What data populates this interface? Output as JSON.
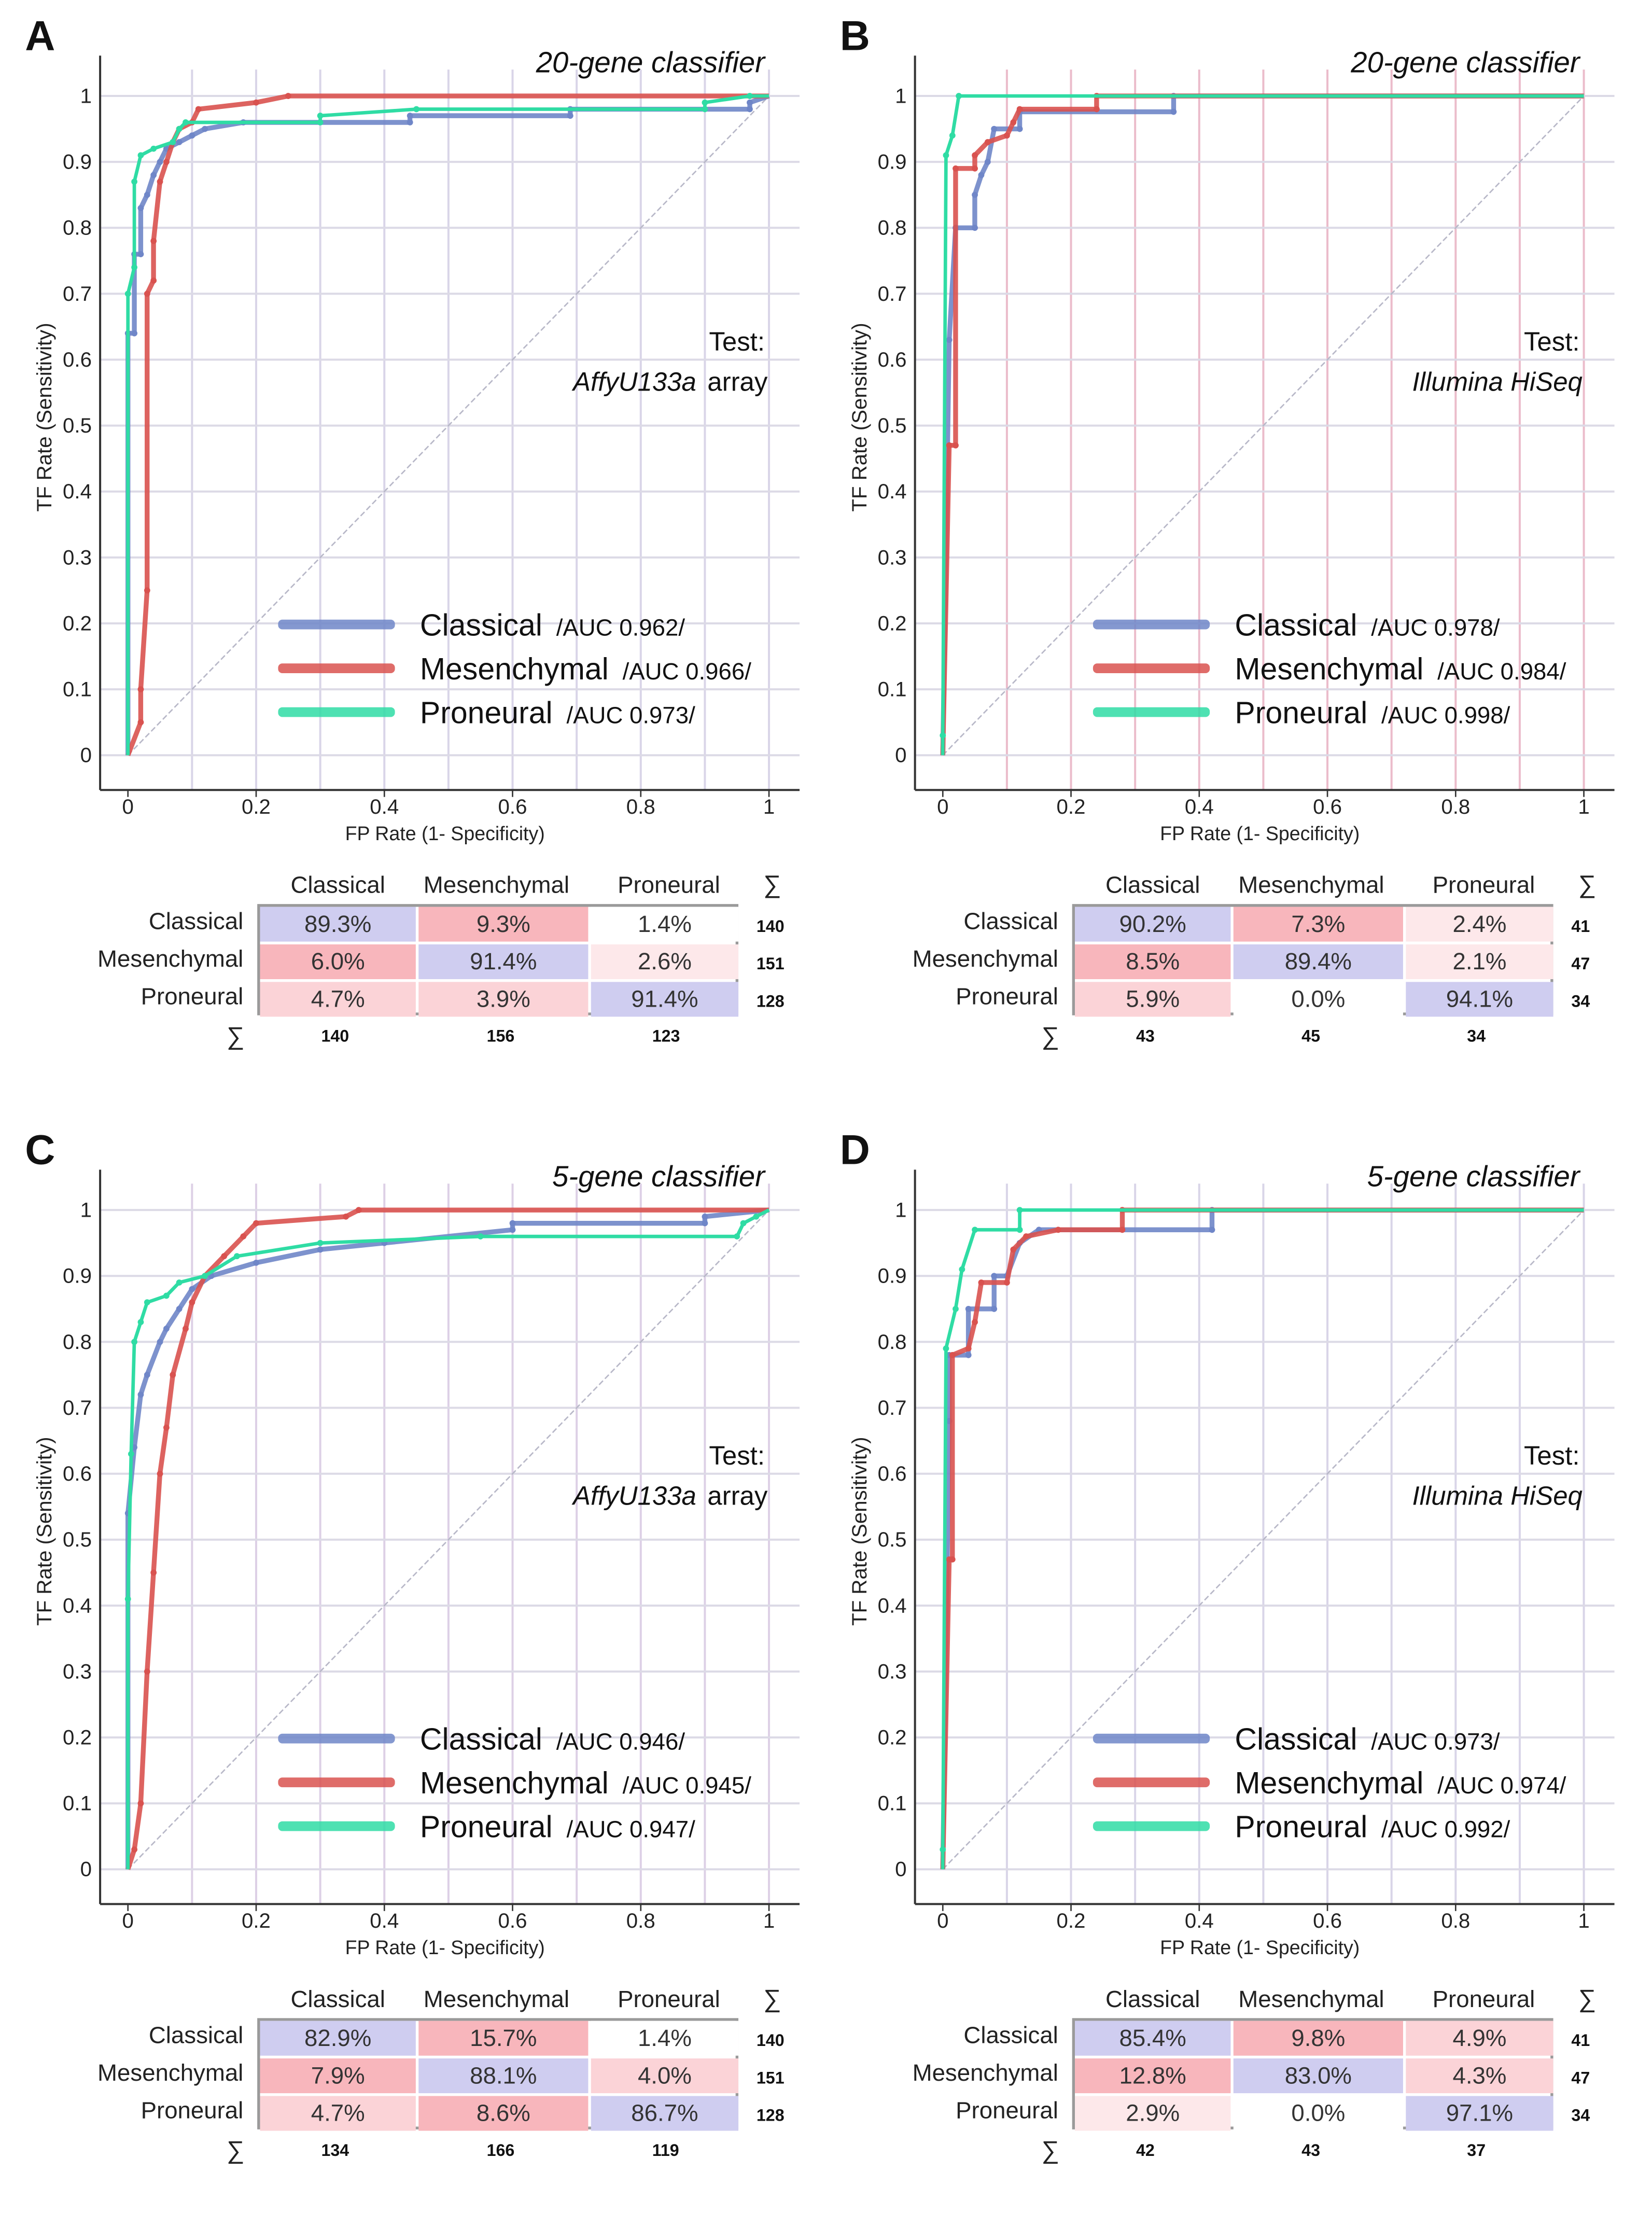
{
  "chart_data": [
    {
      "type": "line",
      "panel_label": "A",
      "title": "20-gene classifier",
      "test_label": "Test:",
      "test_platform": "AffyU133a",
      "test_suffix": "array",
      "xlabel": "FP Rate (1- Specificity)",
      "ylabel": "TF Rate (Sensitivity)",
      "xlim": [
        0,
        1
      ],
      "ylim": [
        0,
        1
      ],
      "x_ticks": [
        "0",
        "0.2",
        "0.4",
        "0.6",
        "0.8",
        "1"
      ],
      "y_ticks": [
        "0",
        "0.1",
        "0.2",
        "0.3",
        "0.4",
        "0.5",
        "0.6",
        "0.7",
        "0.8",
        "0.9",
        "1"
      ],
      "grid": true,
      "grid_color": "#d9d5e8",
      "legend_placement": "bottom-right",
      "series": [
        {
          "name": "Classical",
          "auc": "/AUC 0.962/",
          "color": "#6f86c8",
          "points": [
            [
              0,
              0
            ],
            [
              0,
              0.64
            ],
            [
              0.01,
              0.64
            ],
            [
              0.01,
              0.76
            ],
            [
              0.02,
              0.76
            ],
            [
              0.02,
              0.83
            ],
            [
              0.03,
              0.85
            ],
            [
              0.04,
              0.88
            ],
            [
              0.05,
              0.9
            ],
            [
              0.06,
              0.92
            ],
            [
              0.08,
              0.93
            ],
            [
              0.1,
              0.94
            ],
            [
              0.12,
              0.95
            ],
            [
              0.18,
              0.96
            ],
            [
              0.44,
              0.96
            ],
            [
              0.44,
              0.97
            ],
            [
              0.69,
              0.97
            ],
            [
              0.69,
              0.98
            ],
            [
              0.97,
              0.98
            ],
            [
              0.97,
              0.99
            ],
            [
              1,
              1
            ]
          ]
        },
        {
          "name": "Mesenchymal",
          "auc": "/AUC 0.966/",
          "color": "#d9524f",
          "points": [
            [
              0,
              0
            ],
            [
              0.02,
              0.05
            ],
            [
              0.02,
              0.1
            ],
            [
              0.03,
              0.25
            ],
            [
              0.03,
              0.7
            ],
            [
              0.04,
              0.72
            ],
            [
              0.04,
              0.78
            ],
            [
              0.05,
              0.87
            ],
            [
              0.06,
              0.9
            ],
            [
              0.07,
              0.93
            ],
            [
              0.08,
              0.95
            ],
            [
              0.1,
              0.96
            ],
            [
              0.11,
              0.98
            ],
            [
              0.2,
              0.99
            ],
            [
              0.25,
              1
            ],
            [
              1,
              1
            ]
          ]
        },
        {
          "name": "Proneural",
          "auc": "/AUC 0.973/",
          "color": "#2fdca4",
          "points": [
            [
              0,
              0
            ],
            [
              0,
              0.7
            ],
            [
              0.01,
              0.74
            ],
            [
              0.01,
              0.87
            ],
            [
              0.02,
              0.91
            ],
            [
              0.04,
              0.92
            ],
            [
              0.07,
              0.93
            ],
            [
              0.08,
              0.95
            ],
            [
              0.09,
              0.96
            ],
            [
              0.3,
              0.96
            ],
            [
              0.3,
              0.97
            ],
            [
              0.45,
              0.98
            ],
            [
              0.9,
              0.98
            ],
            [
              0.9,
              0.99
            ],
            [
              0.97,
              1
            ],
            [
              1,
              1
            ]
          ]
        }
      ],
      "table": {
        "columns": [
          "Classical",
          "Mesenchymal",
          "Proneural"
        ],
        "sum_symbol": "∑",
        "rows": [
          {
            "label": "Classical",
            "cells": [
              "89.3%",
              "9.3%",
              "1.4%"
            ],
            "sum": "140"
          },
          {
            "label": "Mesenchymal",
            "cells": [
              "6.0%",
              "91.4%",
              "2.6%"
            ],
            "sum": "151"
          },
          {
            "label": "Proneural",
            "cells": [
              "4.7%",
              "3.9%",
              "91.4%"
            ],
            "sum": "128"
          }
        ],
        "column_sums": [
          "140",
          "156",
          "123"
        ]
      }
    },
    {
      "type": "line",
      "panel_label": "B",
      "title": "20-gene classifier",
      "test_label": "Test:",
      "test_platform": "Illumina HiSeq",
      "test_suffix": "",
      "xlabel": "FP Rate (1- Specificity)",
      "ylabel": "TF Rate (Sensitivity)",
      "xlim": [
        0,
        1
      ],
      "ylim": [
        0,
        1
      ],
      "x_ticks": [
        "0",
        "0.2",
        "0.4",
        "0.6",
        "0.8",
        "1"
      ],
      "y_ticks": [
        "0",
        "0.1",
        "0.2",
        "0.3",
        "0.4",
        "0.5",
        "0.6",
        "0.7",
        "0.8",
        "0.9",
        "1"
      ],
      "grid": true,
      "grid_color": "#ebbccb",
      "legend_placement": "bottom-right",
      "series": [
        {
          "name": "Classical",
          "auc": "/AUC 0.978/",
          "color": "#6f86c8",
          "points": [
            [
              0,
              0
            ],
            [
              0.01,
              0.63
            ],
            [
              0.02,
              0.8
            ],
            [
              0.05,
              0.8
            ],
            [
              0.05,
              0.85
            ],
            [
              0.06,
              0.88
            ],
            [
              0.07,
              0.9
            ],
            [
              0.08,
              0.95
            ],
            [
              0.12,
              0.95
            ],
            [
              0.12,
              0.976
            ],
            [
              0.36,
              0.976
            ],
            [
              0.36,
              1
            ],
            [
              1,
              1
            ]
          ]
        },
        {
          "name": "Mesenchymal",
          "auc": "/AUC 0.984/",
          "color": "#d9524f",
          "points": [
            [
              0,
              0
            ],
            [
              0.01,
              0.47
            ],
            [
              0.02,
              0.47
            ],
            [
              0.02,
              0.89
            ],
            [
              0.05,
              0.89
            ],
            [
              0.05,
              0.91
            ],
            [
              0.07,
              0.93
            ],
            [
              0.1,
              0.94
            ],
            [
              0.11,
              0.96
            ],
            [
              0.12,
              0.98
            ],
            [
              0.24,
              0.98
            ],
            [
              0.24,
              1
            ],
            [
              1,
              1
            ]
          ]
        },
        {
          "name": "Proneural",
          "auc": "/AUC 0.998/",
          "color": "#2fdca4",
          "points": [
            [
              0,
              0
            ],
            [
              0,
              0.03
            ],
            [
              0.005,
              0.91
            ],
            [
              0.015,
              0.94
            ],
            [
              0.025,
              1
            ],
            [
              1,
              1
            ]
          ]
        }
      ],
      "table": {
        "columns": [
          "Classical",
          "Mesenchymal",
          "Proneural"
        ],
        "sum_symbol": "∑",
        "rows": [
          {
            "label": "Classical",
            "cells": [
              "90.2%",
              "7.3%",
              "2.4%"
            ],
            "sum": "41"
          },
          {
            "label": "Mesenchymal",
            "cells": [
              "8.5%",
              "89.4%",
              "2.1%"
            ],
            "sum": "47"
          },
          {
            "label": "Proneural",
            "cells": [
              "5.9%",
              "0.0%",
              "94.1%"
            ],
            "sum": "34"
          }
        ],
        "column_sums": [
          "43",
          "45",
          "34"
        ]
      }
    },
    {
      "type": "line",
      "panel_label": "C",
      "title": "5-gene classifier",
      "test_label": "Test:",
      "test_platform": "AffyU133a",
      "test_suffix": "array",
      "xlabel": "FP Rate (1- Specificity)",
      "ylabel": "TF Rate (Sensitivity)",
      "xlim": [
        0,
        1
      ],
      "ylim": [
        0,
        1
      ],
      "x_ticks": [
        "0",
        "0.2",
        "0.4",
        "0.6",
        "0.8",
        "1"
      ],
      "y_ticks": [
        "0",
        "0.1",
        "0.2",
        "0.3",
        "0.4",
        "0.5",
        "0.6",
        "0.7",
        "0.8",
        "0.9",
        "1"
      ],
      "grid": true,
      "grid_color": "#ddd0e6",
      "legend_placement": "bottom-right",
      "series": [
        {
          "name": "Classical",
          "auc": "/AUC 0.946/",
          "color": "#6f86c8",
          "points": [
            [
              0,
              0
            ],
            [
              0,
              0.54
            ],
            [
              0.01,
              0.64
            ],
            [
              0.02,
              0.72
            ],
            [
              0.03,
              0.75
            ],
            [
              0.05,
              0.8
            ],
            [
              0.06,
              0.82
            ],
            [
              0.08,
              0.85
            ],
            [
              0.1,
              0.88
            ],
            [
              0.13,
              0.9
            ],
            [
              0.2,
              0.92
            ],
            [
              0.3,
              0.94
            ],
            [
              0.4,
              0.95
            ],
            [
              0.6,
              0.97
            ],
            [
              0.6,
              0.98
            ],
            [
              0.9,
              0.98
            ],
            [
              0.9,
              0.99
            ],
            [
              1,
              1
            ]
          ]
        },
        {
          "name": "Mesenchymal",
          "auc": "/AUC 0.945/",
          "color": "#d9524f",
          "points": [
            [
              0,
              0
            ],
            [
              0.01,
              0.03
            ],
            [
              0.02,
              0.1
            ],
            [
              0.03,
              0.3
            ],
            [
              0.04,
              0.45
            ],
            [
              0.05,
              0.6
            ],
            [
              0.06,
              0.67
            ],
            [
              0.07,
              0.75
            ],
            [
              0.09,
              0.82
            ],
            [
              0.1,
              0.86
            ],
            [
              0.12,
              0.9
            ],
            [
              0.15,
              0.93
            ],
            [
              0.18,
              0.96
            ],
            [
              0.2,
              0.98
            ],
            [
              0.34,
              0.99
            ],
            [
              0.36,
              1
            ],
            [
              1,
              1
            ]
          ]
        },
        {
          "name": "Proneural",
          "auc": "/AUC 0.947/",
          "color": "#2fdca4",
          "points": [
            [
              0,
              0
            ],
            [
              0,
              0.41
            ],
            [
              0.005,
              0.63
            ],
            [
              0.01,
              0.8
            ],
            [
              0.02,
              0.83
            ],
            [
              0.03,
              0.86
            ],
            [
              0.06,
              0.87
            ],
            [
              0.08,
              0.89
            ],
            [
              0.12,
              0.9
            ],
            [
              0.17,
              0.93
            ],
            [
              0.3,
              0.95
            ],
            [
              0.55,
              0.96
            ],
            [
              0.95,
              0.96
            ],
            [
              0.96,
              0.98
            ],
            [
              0.98,
              0.99
            ],
            [
              1,
              1
            ]
          ]
        }
      ],
      "table": {
        "columns": [
          "Classical",
          "Mesenchymal",
          "Proneural"
        ],
        "sum_symbol": "∑",
        "rows": [
          {
            "label": "Classical",
            "cells": [
              "82.9%",
              "15.7%",
              "1.4%"
            ],
            "sum": "140"
          },
          {
            "label": "Mesenchymal",
            "cells": [
              "7.9%",
              "88.1%",
              "4.0%"
            ],
            "sum": "151"
          },
          {
            "label": "Proneural",
            "cells": [
              "4.7%",
              "8.6%",
              "86.7%"
            ],
            "sum": "128"
          }
        ],
        "column_sums": [
          "134",
          "166",
          "119"
        ]
      }
    },
    {
      "type": "line",
      "panel_label": "D",
      "title": "5-gene classifier",
      "test_label": "Test:",
      "test_platform": "Illumina HiSeq",
      "test_suffix": "",
      "xlabel": "FP Rate (1- Specificity)",
      "ylabel": "TF Rate (Sensitivity)",
      "xlim": [
        0,
        1
      ],
      "ylim": [
        0,
        1
      ],
      "x_ticks": [
        "0",
        "0.2",
        "0.4",
        "0.6",
        "0.8",
        "1"
      ],
      "y_ticks": [
        "0",
        "0.1",
        "0.2",
        "0.3",
        "0.4",
        "0.5",
        "0.6",
        "0.7",
        "0.8",
        "0.9",
        "1"
      ],
      "grid": true,
      "grid_color": "#d9d5e8",
      "legend_placement": "bottom-right",
      "series": [
        {
          "name": "Classical",
          "auc": "/AUC 0.973/",
          "color": "#6f86c8",
          "points": [
            [
              0,
              0
            ],
            [
              0.01,
              0.68
            ],
            [
              0.01,
              0.78
            ],
            [
              0.04,
              0.78
            ],
            [
              0.04,
              0.85
            ],
            [
              0.08,
              0.85
            ],
            [
              0.08,
              0.9
            ],
            [
              0.1,
              0.9
            ],
            [
              0.12,
              0.95
            ],
            [
              0.15,
              0.97
            ],
            [
              0.42,
              0.97
            ],
            [
              0.42,
              1
            ],
            [
              1,
              1
            ]
          ]
        },
        {
          "name": "Mesenchymal",
          "auc": "/AUC 0.974/",
          "color": "#d9524f",
          "points": [
            [
              0,
              0
            ],
            [
              0.01,
              0.47
            ],
            [
              0.015,
              0.47
            ],
            [
              0.015,
              0.78
            ],
            [
              0.04,
              0.79
            ],
            [
              0.05,
              0.83
            ],
            [
              0.06,
              0.89
            ],
            [
              0.1,
              0.89
            ],
            [
              0.11,
              0.94
            ],
            [
              0.13,
              0.96
            ],
            [
              0.18,
              0.97
            ],
            [
              0.28,
              0.97
            ],
            [
              0.28,
              1
            ],
            [
              1,
              1
            ]
          ]
        },
        {
          "name": "Proneural",
          "auc": "/AUC 0.992/",
          "color": "#2fdca4",
          "points": [
            [
              0,
              0
            ],
            [
              0,
              0.03
            ],
            [
              0.005,
              0.79
            ],
            [
              0.02,
              0.85
            ],
            [
              0.03,
              0.91
            ],
            [
              0.05,
              0.97
            ],
            [
              0.12,
              0.97
            ],
            [
              0.12,
              1
            ],
            [
              1,
              1
            ]
          ]
        }
      ],
      "table": {
        "columns": [
          "Classical",
          "Mesenchymal",
          "Proneural"
        ],
        "sum_symbol": "∑",
        "rows": [
          {
            "label": "Classical",
            "cells": [
              "85.4%",
              "9.8%",
              "4.9%"
            ],
            "sum": "41"
          },
          {
            "label": "Mesenchymal",
            "cells": [
              "12.8%",
              "83.0%",
              "4.3%"
            ],
            "sum": "47"
          },
          {
            "label": "Proneural",
            "cells": [
              "2.9%",
              "0.0%",
              "97.1%"
            ],
            "sum": "34"
          }
        ],
        "column_sums": [
          "42",
          "43",
          "37"
        ]
      }
    }
  ]
}
